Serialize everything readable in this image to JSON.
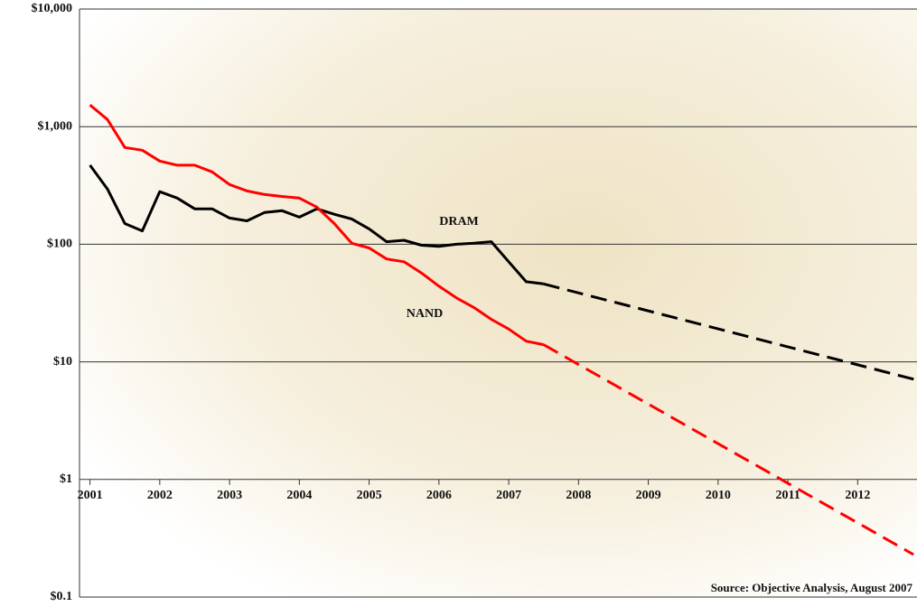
{
  "chart_data": {
    "type": "line",
    "log_y": true,
    "grid": true,
    "xlim": [
      2000.85,
      2012.85
    ],
    "xticks": [
      2001,
      2002,
      2003,
      2004,
      2005,
      2006,
      2007,
      2008,
      2009,
      2010,
      2011,
      2012
    ],
    "ylim": [
      0.1,
      10000
    ],
    "yticks": [
      {
        "value": 0.1,
        "label": "$0.1"
      },
      {
        "value": 1,
        "label": "$1"
      },
      {
        "value": 10,
        "label": "$10"
      },
      {
        "value": 100,
        "label": "$100"
      },
      {
        "value": 1000,
        "label": "$1,000"
      },
      {
        "value": 10000,
        "label": "$10,000"
      }
    ],
    "series": [
      {
        "name": "DRAM",
        "color": "#000000",
        "x": [
          2001.0,
          2001.25,
          2001.5,
          2001.75,
          2002.0,
          2002.25,
          2002.5,
          2002.75,
          2003.0,
          2003.25,
          2003.5,
          2003.75,
          2004.0,
          2004.25,
          2004.5,
          2004.75,
          2005.0,
          2005.25,
          2005.5,
          2005.75,
          2006.0,
          2006.25,
          2006.5,
          2006.75,
          2007.0,
          2007.25,
          2007.5
        ],
        "values": [
          470,
          295,
          150,
          130,
          280,
          247,
          200,
          200,
          167,
          158,
          186,
          193,
          170,
          200,
          180,
          164,
          135,
          105,
          108,
          98,
          96,
          100,
          102,
          105,
          71,
          48,
          46
        ]
      },
      {
        "color": "#000000",
        "dashed": true,
        "x": [
          2007.5,
          2012.85
        ],
        "values": [
          46,
          7
        ]
      },
      {
        "name": "NAND",
        "color": "#ff0000",
        "x": [
          2001.0,
          2001.25,
          2001.5,
          2001.75,
          2002.0,
          2002.25,
          2002.5,
          2002.75,
          2003.0,
          2003.25,
          2003.5,
          2003.75,
          2004.0,
          2004.25,
          2004.5,
          2004.75,
          2005.0,
          2005.25,
          2005.5,
          2005.75,
          2006.0,
          2006.25,
          2006.5,
          2006.75,
          2007.0,
          2007.25,
          2007.5
        ],
        "values": [
          1530,
          1150,
          665,
          630,
          510,
          470,
          470,
          412,
          322,
          284,
          265,
          255,
          247,
          207,
          150,
          102,
          93,
          75,
          71,
          57,
          44,
          35,
          29,
          23,
          19,
          15,
          14
        ]
      },
      {
        "color": "#ff0000",
        "dashed": true,
        "x": [
          2007.5,
          2012.8
        ],
        "values": [
          14,
          0.23
        ]
      }
    ],
    "source": "Source: Objective Analysis, August 2007"
  }
}
